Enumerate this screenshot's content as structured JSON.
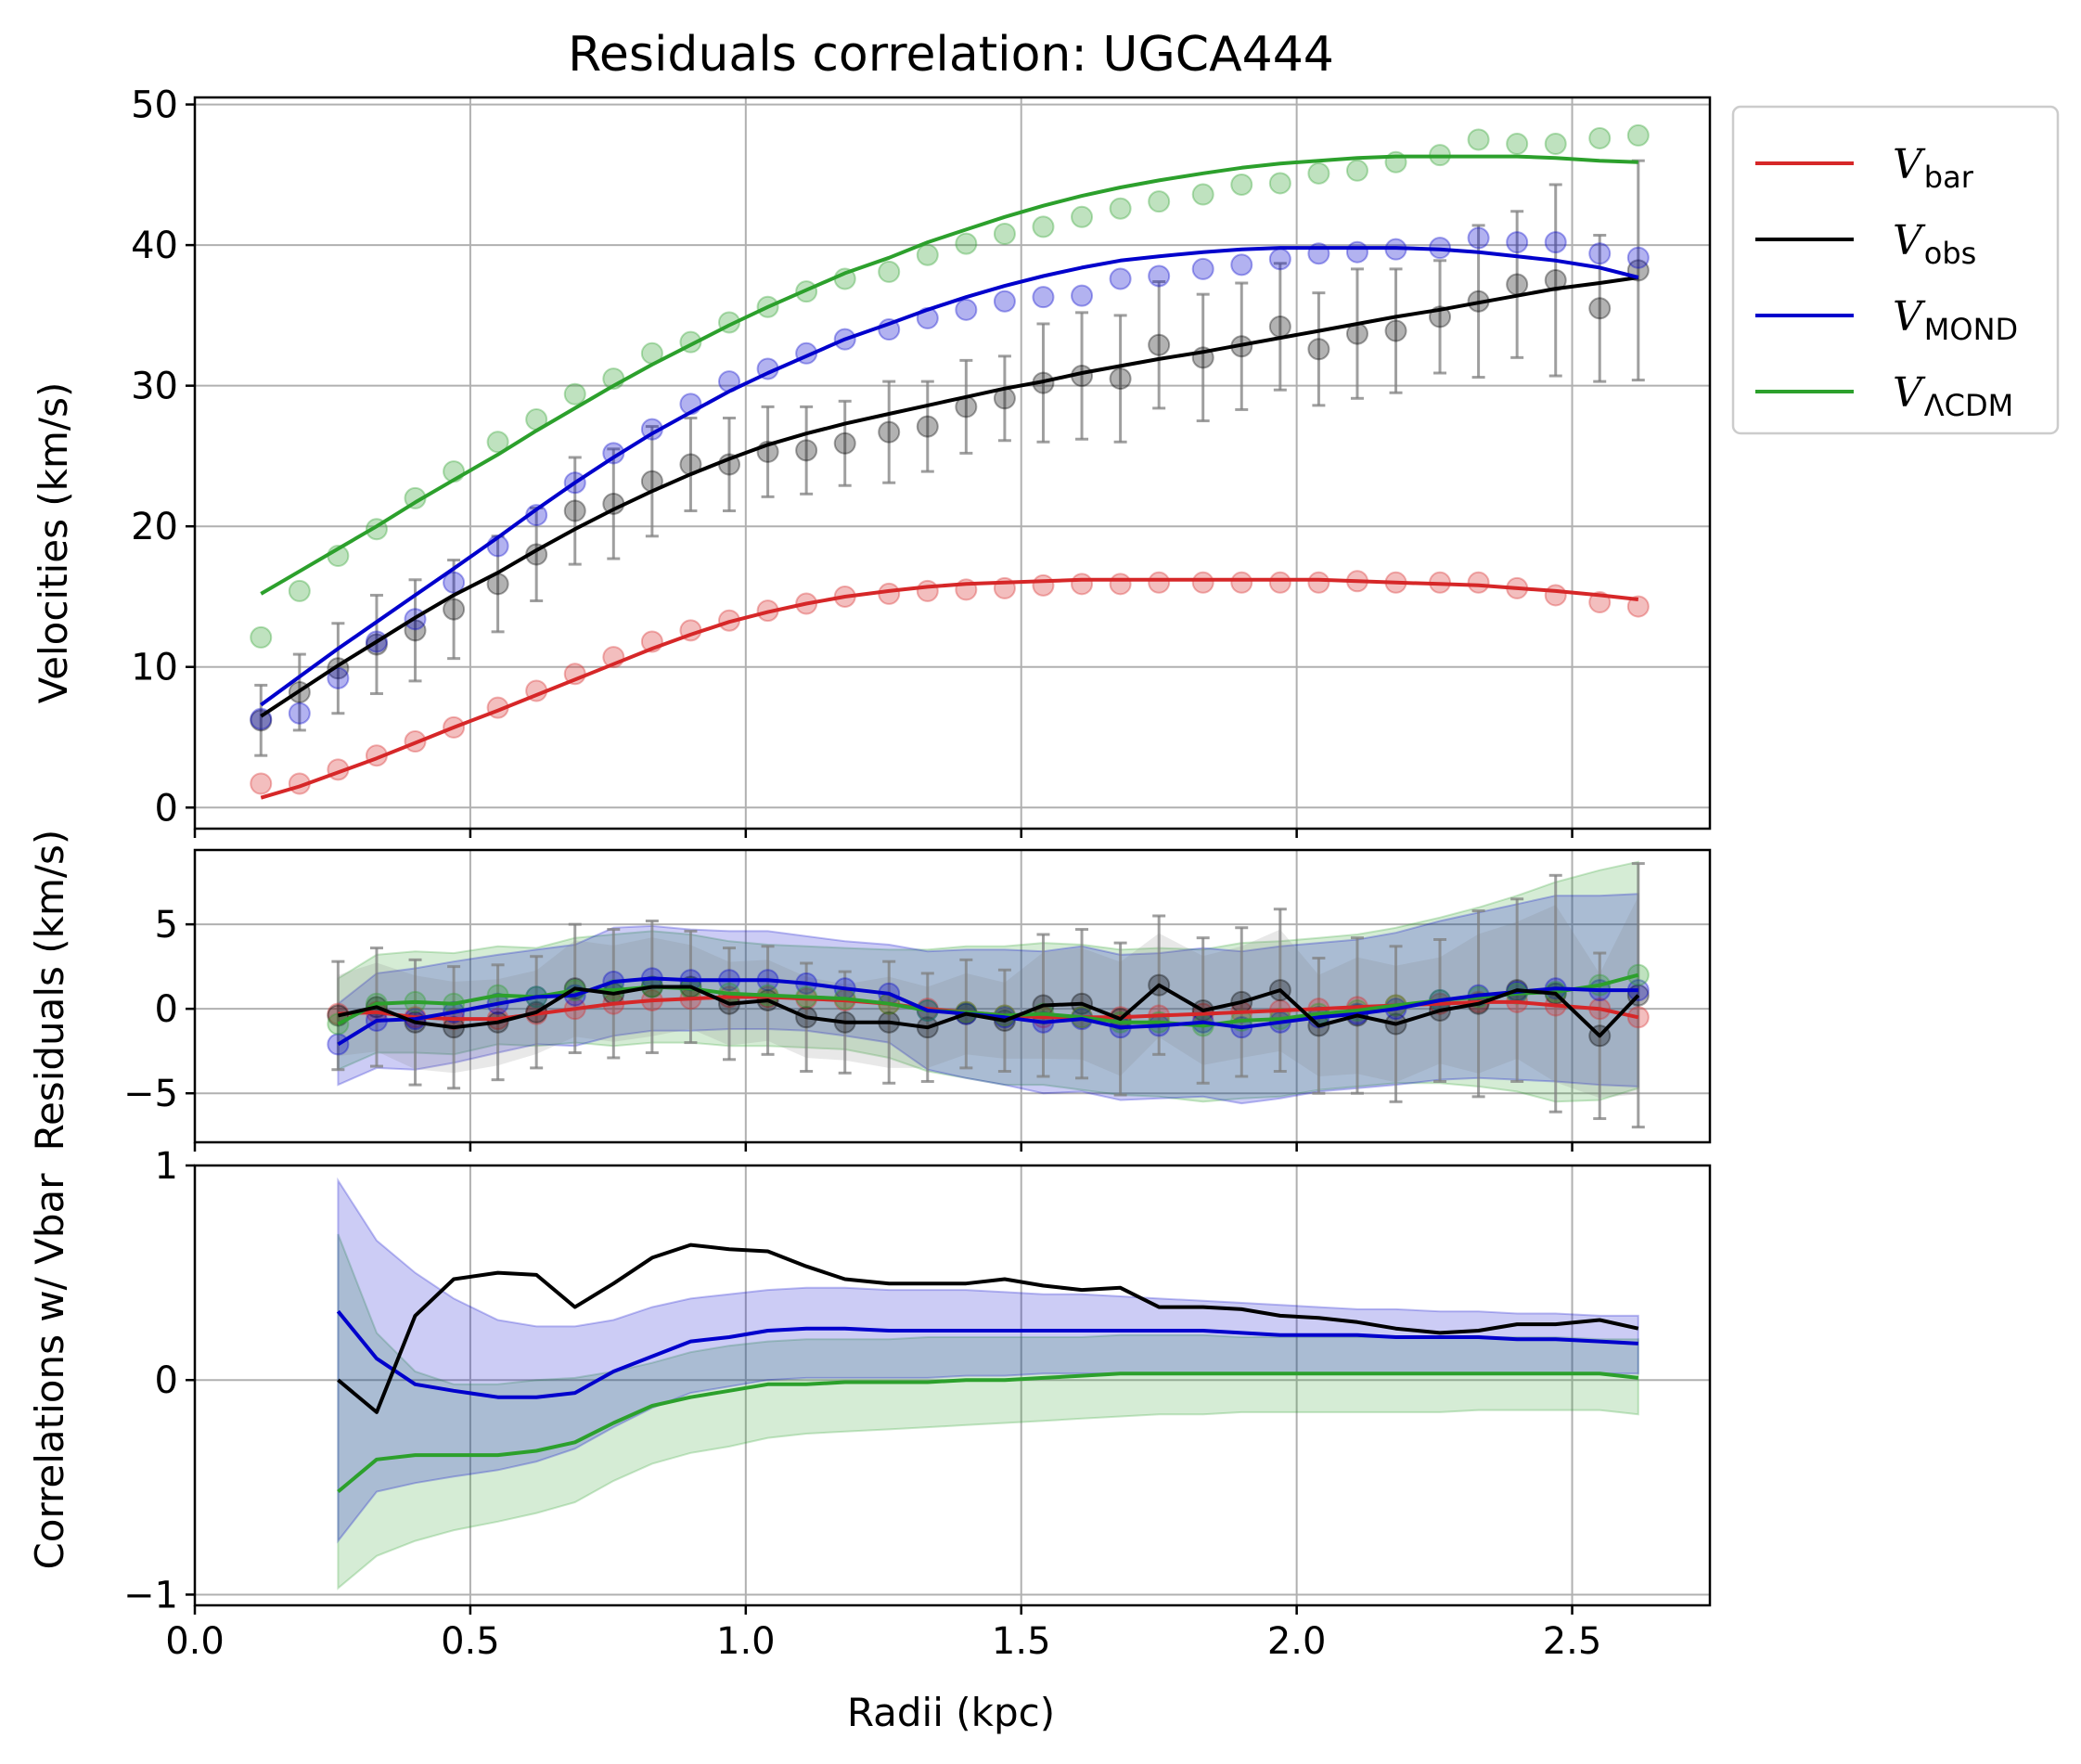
{
  "chart_data": [
    {
      "panel": "velocities",
      "type": "line",
      "title": "Residuals correlation: UGCA444",
      "ylabel": "Velocities (km/s)",
      "xlim": [
        0.0,
        2.75
      ],
      "ylim": [
        -1.5,
        50.5
      ],
      "yticks": [
        0,
        10,
        20,
        30,
        40,
        50
      ],
      "grid": true,
      "legend_position": "outside-right",
      "x": [
        0.12,
        0.19,
        0.26,
        0.33,
        0.4,
        0.47,
        0.55,
        0.62,
        0.69,
        0.76,
        0.83,
        0.9,
        0.97,
        1.04,
        1.11,
        1.18,
        1.26,
        1.33,
        1.4,
        1.47,
        1.54,
        1.61,
        1.68,
        1.75,
        1.83,
        1.9,
        1.97,
        2.04,
        2.11,
        2.18,
        2.26,
        2.33,
        2.4,
        2.47,
        2.55,
        2.62
      ],
      "series": [
        {
          "name": "V_bar",
          "color": "#d62728",
          "line": [
            0.7,
            1.5,
            2.5,
            3.5,
            4.6,
            5.7,
            6.9,
            8.0,
            9.1,
            10.2,
            11.3,
            12.3,
            13.2,
            13.9,
            14.5,
            15.0,
            15.4,
            15.7,
            15.9,
            16.0,
            16.1,
            16.2,
            16.2,
            16.2,
            16.2,
            16.2,
            16.2,
            16.2,
            16.1,
            16.0,
            15.9,
            15.8,
            15.6,
            15.4,
            15.1,
            14.8
          ],
          "points": [
            1.7,
            1.7,
            2.7,
            3.7,
            4.7,
            5.7,
            7.1,
            8.3,
            9.5,
            10.7,
            11.8,
            12.6,
            13.3,
            14.0,
            14.5,
            15.0,
            15.2,
            15.4,
            15.5,
            15.6,
            15.8,
            15.9,
            15.9,
            16.0,
            16.0,
            16.0,
            16.0,
            16.0,
            16.1,
            16.0,
            16.0,
            16.0,
            15.6,
            15.1,
            14.6,
            14.3
          ]
        },
        {
          "name": "V_obs",
          "color": "#000000",
          "line": [
            6.5,
            8.3,
            10.1,
            11.8,
            13.5,
            15.1,
            16.7,
            18.3,
            19.8,
            21.2,
            22.5,
            23.7,
            24.8,
            25.8,
            26.6,
            27.3,
            28.0,
            28.6,
            29.2,
            29.8,
            30.3,
            30.9,
            31.4,
            31.9,
            32.4,
            32.9,
            33.4,
            33.9,
            34.4,
            34.9,
            35.4,
            35.9,
            36.4,
            36.9,
            37.3,
            37.7
          ],
          "points": [
            6.2,
            8.2,
            9.9,
            11.6,
            12.6,
            14.1,
            15.9,
            18.0,
            21.1,
            21.6,
            23.2,
            24.4,
            24.4,
            25.3,
            25.4,
            25.9,
            26.7,
            27.1,
            28.5,
            29.1,
            30.2,
            30.7,
            30.5,
            32.9,
            32.0,
            32.8,
            34.2,
            32.6,
            33.7,
            33.9,
            34.9,
            36.0,
            37.2,
            37.5,
            35.5,
            38.2
          ],
          "errors": [
            2.5,
            2.7,
            3.2,
            3.5,
            3.6,
            3.5,
            3.4,
            3.3,
            3.8,
            3.9,
            3.9,
            3.3,
            3.3,
            3.2,
            3.1,
            3.0,
            3.6,
            3.2,
            3.3,
            3.0,
            4.2,
            4.5,
            4.5,
            4.5,
            4.5,
            4.5,
            4.5,
            4.0,
            4.6,
            4.4,
            4.0,
            5.4,
            5.2,
            6.8,
            5.2,
            7.8
          ]
        },
        {
          "name": "V_MOND",
          "color": "#0000cc",
          "line": [
            7.3,
            9.3,
            11.3,
            13.2,
            15.1,
            17.0,
            19.2,
            21.2,
            23.1,
            24.9,
            26.6,
            28.1,
            29.6,
            30.9,
            32.1,
            33.3,
            34.4,
            35.4,
            36.3,
            37.1,
            37.8,
            38.4,
            38.9,
            39.2,
            39.5,
            39.7,
            39.8,
            39.8,
            39.8,
            39.8,
            39.7,
            39.5,
            39.2,
            38.9,
            38.4,
            37.7
          ],
          "points": [
            6.3,
            6.7,
            9.2,
            11.8,
            13.4,
            16.0,
            18.6,
            20.8,
            23.1,
            25.2,
            26.9,
            28.7,
            30.3,
            31.2,
            32.3,
            33.3,
            34.0,
            34.8,
            35.4,
            36.0,
            36.3,
            36.4,
            37.6,
            37.8,
            38.3,
            38.6,
            39.0,
            39.4,
            39.5,
            39.7,
            39.8,
            40.5,
            40.2,
            40.2,
            39.4,
            39.1
          ]
        },
        {
          "name": "V_LCDM",
          "color": "#2ca02c",
          "line": [
            15.2,
            16.8,
            18.4,
            20.0,
            21.7,
            23.3,
            25.1,
            26.8,
            28.4,
            30.0,
            31.5,
            32.9,
            34.3,
            35.6,
            36.8,
            38.0,
            39.1,
            40.2,
            41.1,
            42.0,
            42.8,
            43.5,
            44.1,
            44.6,
            45.1,
            45.5,
            45.8,
            46.0,
            46.2,
            46.3,
            46.3,
            46.3,
            46.3,
            46.2,
            46.0,
            45.9
          ],
          "points": [
            12.1,
            15.4,
            17.9,
            19.8,
            22.0,
            23.9,
            26.0,
            27.6,
            29.4,
            30.5,
            32.3,
            33.1,
            34.5,
            35.6,
            36.7,
            37.6,
            38.1,
            39.3,
            40.1,
            40.8,
            41.3,
            42.0,
            42.6,
            43.1,
            43.6,
            44.3,
            44.4,
            45.1,
            45.3,
            45.9,
            46.4,
            47.5,
            47.2,
            47.2,
            47.6,
            47.8
          ]
        }
      ]
    },
    {
      "panel": "residuals",
      "type": "line",
      "ylabel": "Residuals (km/s)",
      "xlim": [
        0.0,
        2.75
      ],
      "ylim": [
        -7.9,
        9.4
      ],
      "yticks": [
        -5,
        0,
        5
      ],
      "ytick_labels": [
        "−5",
        "0",
        "5"
      ],
      "grid": true,
      "x": [
        0.26,
        0.33,
        0.4,
        0.47,
        0.55,
        0.62,
        0.69,
        0.76,
        0.83,
        0.9,
        0.97,
        1.04,
        1.11,
        1.18,
        1.26,
        1.33,
        1.4,
        1.47,
        1.54,
        1.61,
        1.68,
        1.75,
        1.83,
        1.9,
        1.97,
        2.04,
        2.11,
        2.18,
        2.26,
        2.33,
        2.4,
        2.47,
        2.55,
        2.62
      ],
      "series": [
        {
          "name": "V_bar",
          "color": "#d62728",
          "values": [
            -0.3,
            -0.2,
            -0.5,
            -0.6,
            -0.6,
            -0.3,
            0.0,
            0.3,
            0.5,
            0.6,
            0.7,
            0.7,
            0.6,
            0.5,
            0.3,
            0.0,
            -0.2,
            -0.4,
            -0.5,
            -0.5,
            -0.5,
            -0.4,
            -0.3,
            -0.2,
            -0.1,
            0.0,
            0.1,
            0.2,
            0.3,
            0.4,
            0.4,
            0.2,
            0.0,
            -0.5
          ]
        },
        {
          "name": "V_obs",
          "color": "#000000",
          "values": [
            -0.4,
            0.1,
            -0.8,
            -1.1,
            -0.8,
            -0.2,
            1.2,
            0.9,
            1.3,
            1.3,
            0.3,
            0.5,
            -0.5,
            -0.8,
            -0.8,
            -1.1,
            -0.3,
            -0.7,
            0.2,
            0.3,
            -0.6,
            1.4,
            -0.1,
            0.4,
            1.1,
            -1.0,
            -0.4,
            -0.9,
            -0.1,
            0.3,
            1.1,
            0.9,
            -1.6,
            0.8
          ],
          "errors": [
            3.2,
            3.5,
            3.7,
            3.6,
            3.4,
            3.3,
            3.8,
            3.8,
            3.9,
            3.3,
            3.3,
            3.2,
            3.2,
            3.0,
            3.6,
            3.2,
            3.2,
            3.0,
            4.2,
            4.4,
            4.5,
            4.1,
            4.3,
            4.4,
            4.8,
            4.0,
            4.6,
            4.6,
            4.2,
            5.5,
            5.4,
            7.0,
            4.9,
            7.8
          ]
        },
        {
          "name": "V_MOND",
          "color": "#0000cc",
          "values": [
            -2.1,
            -0.7,
            -0.6,
            -0.2,
            0.3,
            0.7,
            0.8,
            1.6,
            1.8,
            1.7,
            1.7,
            1.7,
            1.5,
            1.2,
            0.9,
            -0.1,
            -0.3,
            -0.5,
            -0.8,
            -0.6,
            -1.1,
            -1.0,
            -0.8,
            -1.1,
            -0.8,
            -0.5,
            -0.3,
            0.0,
            0.5,
            0.8,
            1.0,
            1.2,
            1.1,
            1.1
          ],
          "band_half_width": [
            2.4,
            2.8,
            3.0,
            3.0,
            2.9,
            2.8,
            3.0,
            3.2,
            3.1,
            3.0,
            2.9,
            2.9,
            2.8,
            2.8,
            2.9,
            3.5,
            3.8,
            4.0,
            4.2,
            4.3,
            4.3,
            4.3,
            4.4,
            4.5,
            4.5,
            4.4,
            4.4,
            4.5,
            4.7,
            4.9,
            5.2,
            5.5,
            5.6,
            5.7
          ]
        },
        {
          "name": "V_LCDM",
          "color": "#2ca02c",
          "values": [
            -0.9,
            0.3,
            0.4,
            0.3,
            0.8,
            0.7,
            1.1,
            1.1,
            1.3,
            1.2,
            0.9,
            0.8,
            0.7,
            0.6,
            0.3,
            -0.1,
            -0.2,
            -0.4,
            -0.3,
            -0.5,
            -0.8,
            -0.8,
            -1.0,
            -0.7,
            -0.6,
            -0.3,
            -0.1,
            0.2,
            0.5,
            0.7,
            0.9,
            1.0,
            1.4,
            2.0
          ],
          "band_half_width": [
            2.7,
            2.9,
            3.0,
            3.0,
            2.9,
            2.9,
            3.1,
            3.3,
            3.3,
            3.2,
            3.1,
            3.0,
            3.0,
            3.0,
            3.2,
            3.6,
            3.9,
            4.1,
            4.2,
            4.3,
            4.3,
            4.4,
            4.5,
            4.6,
            4.6,
            4.5,
            4.5,
            4.6,
            4.9,
            5.3,
            5.8,
            6.5,
            6.8,
            6.7
          ]
        }
      ]
    },
    {
      "panel": "correlations",
      "type": "line",
      "ylabel": "Correlations w/ Vbar",
      "xlabel": "Radii (kpc)",
      "xlim": [
        0.0,
        2.75
      ],
      "ylim": [
        -1.05,
        1.0
      ],
      "yticks": [
        -1,
        0,
        1
      ],
      "ytick_labels": [
        "−1",
        "0",
        "1"
      ],
      "xticks": [
        0.0,
        0.5,
        1.0,
        1.5,
        2.0,
        2.5
      ],
      "xtick_labels": [
        "0.0",
        "0.5",
        "1.0",
        "1.5",
        "2.0",
        "2.5"
      ],
      "grid": true,
      "x": [
        0.26,
        0.33,
        0.4,
        0.47,
        0.55,
        0.62,
        0.69,
        0.76,
        0.83,
        0.9,
        0.97,
        1.04,
        1.11,
        1.18,
        1.26,
        1.33,
        1.4,
        1.47,
        1.54,
        1.61,
        1.68,
        1.75,
        1.83,
        1.9,
        1.97,
        2.04,
        2.11,
        2.18,
        2.26,
        2.33,
        2.4,
        2.47,
        2.55,
        2.62
      ],
      "series": [
        {
          "name": "V_obs",
          "color": "#000000",
          "values": [
            0.0,
            -0.15,
            0.3,
            0.47,
            0.5,
            0.49,
            0.34,
            0.45,
            0.57,
            0.63,
            0.61,
            0.6,
            0.53,
            0.47,
            0.45,
            0.45,
            0.45,
            0.47,
            0.44,
            0.42,
            0.43,
            0.34,
            0.34,
            0.33,
            0.3,
            0.29,
            0.27,
            0.24,
            0.22,
            0.23,
            0.26,
            0.26,
            0.28,
            0.24
          ]
        },
        {
          "name": "V_MOND",
          "color": "#0000cc",
          "values": [
            0.32,
            0.1,
            -0.02,
            -0.05,
            -0.08,
            -0.08,
            -0.06,
            0.04,
            0.11,
            0.18,
            0.2,
            0.23,
            0.24,
            0.24,
            0.23,
            0.23,
            0.23,
            0.23,
            0.23,
            0.23,
            0.23,
            0.23,
            0.23,
            0.22,
            0.21,
            0.21,
            0.21,
            0.2,
            0.2,
            0.2,
            0.19,
            0.19,
            0.18,
            0.17
          ],
          "band_upper": [
            0.93,
            0.65,
            0.5,
            0.38,
            0.28,
            0.25,
            0.25,
            0.28,
            0.34,
            0.38,
            0.4,
            0.42,
            0.43,
            0.43,
            0.42,
            0.42,
            0.42,
            0.41,
            0.4,
            0.4,
            0.39,
            0.38,
            0.37,
            0.36,
            0.35,
            0.34,
            0.33,
            0.33,
            0.32,
            0.32,
            0.31,
            0.31,
            0.3,
            0.3
          ],
          "band_lower": [
            -0.75,
            -0.52,
            -0.48,
            -0.45,
            -0.42,
            -0.38,
            -0.32,
            -0.22,
            -0.13,
            -0.06,
            -0.03,
            0.0,
            0.01,
            0.01,
            0.01,
            0.01,
            0.02,
            0.02,
            0.03,
            0.03,
            0.03,
            0.03,
            0.03,
            0.03,
            0.03,
            0.03,
            0.03,
            0.03,
            0.03,
            0.03,
            0.03,
            0.03,
            0.03,
            0.03
          ]
        },
        {
          "name": "V_LCDM",
          "color": "#2ca02c",
          "values": [
            -0.52,
            -0.37,
            -0.35,
            -0.35,
            -0.35,
            -0.33,
            -0.29,
            -0.2,
            -0.12,
            -0.08,
            -0.05,
            -0.02,
            -0.02,
            -0.01,
            -0.01,
            -0.01,
            0.0,
            0.0,
            0.01,
            0.02,
            0.03,
            0.03,
            0.03,
            0.03,
            0.03,
            0.03,
            0.03,
            0.03,
            0.03,
            0.03,
            0.03,
            0.03,
            0.03,
            0.01
          ],
          "band_upper": [
            0.68,
            0.22,
            0.04,
            -0.02,
            -0.02,
            0.0,
            0.01,
            0.04,
            0.08,
            0.13,
            0.16,
            0.18,
            0.19,
            0.19,
            0.19,
            0.2,
            0.2,
            0.2,
            0.2,
            0.2,
            0.21,
            0.21,
            0.21,
            0.2,
            0.2,
            0.2,
            0.2,
            0.2,
            0.2,
            0.2,
            0.2,
            0.2,
            0.19,
            0.19
          ],
          "band_lower": [
            -0.97,
            -0.82,
            -0.75,
            -0.7,
            -0.66,
            -0.62,
            -0.57,
            -0.47,
            -0.39,
            -0.34,
            -0.31,
            -0.27,
            -0.25,
            -0.24,
            -0.23,
            -0.22,
            -0.21,
            -0.2,
            -0.19,
            -0.18,
            -0.17,
            -0.16,
            -0.16,
            -0.15,
            -0.15,
            -0.15,
            -0.15,
            -0.15,
            -0.15,
            -0.14,
            -0.14,
            -0.14,
            -0.14,
            -0.16
          ]
        }
      ]
    }
  ],
  "legend": [
    {
      "symbol": "V",
      "sub": "bar",
      "color": "#d62728"
    },
    {
      "symbol": "V",
      "sub": "obs",
      "color": "#000000"
    },
    {
      "symbol": "V",
      "sub": "MOND",
      "color": "#0000cc"
    },
    {
      "symbol": "V",
      "sub": "ΛCDM",
      "color": "#2ca02c"
    }
  ],
  "velocity_ytick_labels": [
    "0",
    "10",
    "20",
    "30",
    "40",
    "50"
  ]
}
